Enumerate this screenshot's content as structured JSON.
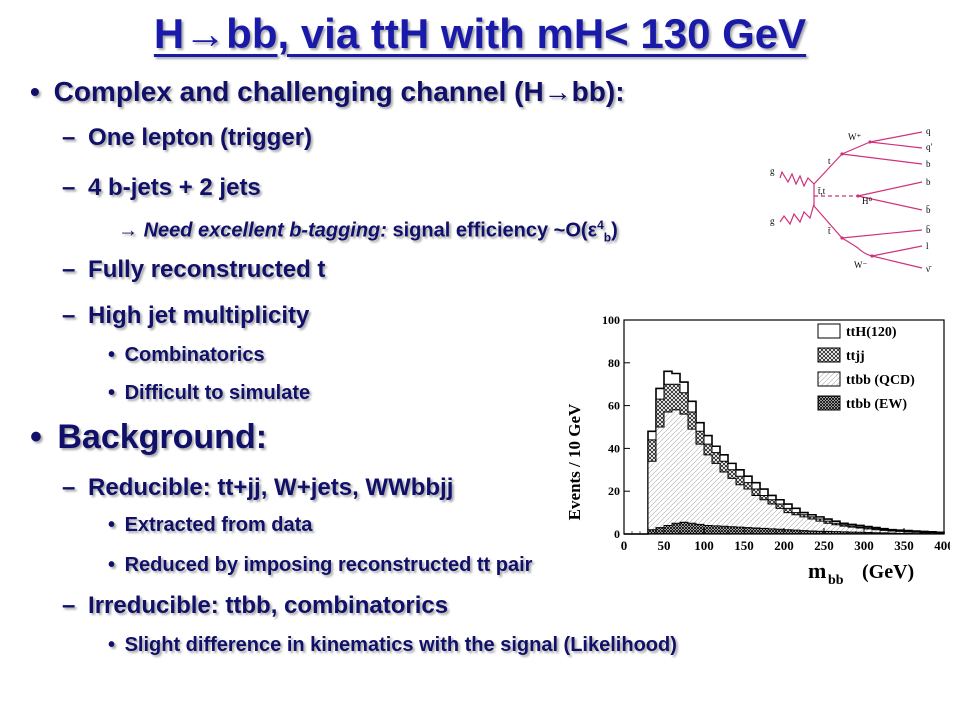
{
  "slide": {
    "title": "H→bb, via ttH with mH< 130 GeV",
    "bullets": {
      "b1": "Complex and challenging channel (H→bb):",
      "b1_1": "One lepton (trigger)",
      "b1_2": "4 b-jets + 2 jets",
      "b1_2_a_prefix": "→ ",
      "b1_2_a_italic": "Need excellent b-tagging:",
      "b1_2_a_rest": " signal efficiency ~O(ε",
      "b1_2_a_sup": "4",
      "b1_2_a_sub": "b",
      "b1_2_a_close": ")",
      "b1_3": "Fully reconstructed t",
      "b1_4": "High jet multiplicity",
      "b1_4_1": "Combinatorics",
      "b1_4_2": "Difficult to simulate",
      "b2": "Background:",
      "b2_1": "Reducible: tt+jj, W+jets, WWbbjj",
      "b2_1_1": "Extracted from data",
      "b2_1_2": "Reduced by imposing reconstructed tt pair",
      "b2_2": "Irreducible: ttbb, combinatorics",
      "b2_2_1": "Slight difference in kinematics with the signal (Likelihood)"
    },
    "markers": {
      "bullet": "•",
      "dash": "–"
    }
  },
  "feynman": {
    "labels": {
      "g1": "g",
      "g2": "g",
      "t1": "t",
      "tt": "t̄,t",
      "tbar": "t̄",
      "W1": "W⁺",
      "W2": "W⁻",
      "H": "H⁰",
      "q": "q",
      "qp": "q′",
      "b1": "b",
      "b2": "b",
      "bb1": "b̄",
      "bb2": "b̄",
      "l": "l",
      "nu": "ν̄"
    }
  },
  "chart_data": {
    "type": "histogram",
    "xlabel": "m",
    "xlabel_sub": "bb",
    "xlabel_unit": "(GeV)",
    "ylabel": "Events / 10 GeV",
    "xlim": [
      0,
      400
    ],
    "ylim": [
      0,
      100
    ],
    "xticks": [
      0,
      50,
      100,
      150,
      200,
      250,
      300,
      350,
      400
    ],
    "yticks": [
      0,
      20,
      40,
      60,
      80,
      100
    ],
    "bin_width": 10,
    "legend_position": "top-right",
    "series": [
      {
        "name": "ttH(120)",
        "style": "open",
        "values": [
          0,
          0,
          0,
          48,
          68,
          76,
          75,
          71,
          62,
          52,
          46,
          41,
          37,
          33,
          30,
          27,
          24,
          21,
          18,
          16,
          14,
          12,
          10,
          9,
          8,
          7,
          6,
          5,
          4.5,
          4,
          3.5,
          3,
          2.5,
          2,
          1.8,
          1.6,
          1.4,
          1.2,
          1,
          0.8
        ]
      },
      {
        "name": "ttjj",
        "style": "crosshatch",
        "values": [
          0,
          0,
          0,
          44,
          63,
          70,
          70,
          66,
          57,
          48,
          42,
          38,
          34,
          30,
          27,
          24,
          21,
          18,
          16,
          14,
          12,
          10,
          9,
          8,
          7,
          6,
          5,
          4.3,
          3.8,
          3.3,
          2.9,
          2.5,
          2.1,
          1.8,
          1.5,
          1.3,
          1.1,
          0.9,
          0.7,
          0.5
        ]
      },
      {
        "name": "ttbb (QCD)",
        "style": "light-hatch",
        "values": [
          0,
          0,
          0,
          34,
          50,
          57,
          58,
          56,
          49,
          42,
          37,
          33,
          29,
          26,
          23,
          21,
          18,
          16,
          14,
          12,
          10,
          9,
          8,
          7,
          6,
          5,
          4.3,
          3.7,
          3.2,
          2.8,
          2.4,
          2,
          1.7,
          1.4,
          1.2,
          1,
          0.8,
          0.6,
          0.5,
          0.4
        ]
      },
      {
        "name": "ttbb (EW)",
        "style": "dense-hatch",
        "values": [
          0,
          0,
          0,
          2,
          3,
          4,
          5,
          5.5,
          5,
          4.5,
          4,
          3.8,
          3.6,
          3.4,
          3.2,
          3,
          2.8,
          2.6,
          2.4,
          2.2,
          2,
          1.8,
          1.6,
          1.4,
          1.3,
          1.2,
          1.1,
          1,
          0.9,
          0.8,
          0.7,
          0.6,
          0.5,
          0.4,
          0.3,
          0.3,
          0.2,
          0.2,
          0.1,
          0.1
        ]
      }
    ]
  }
}
